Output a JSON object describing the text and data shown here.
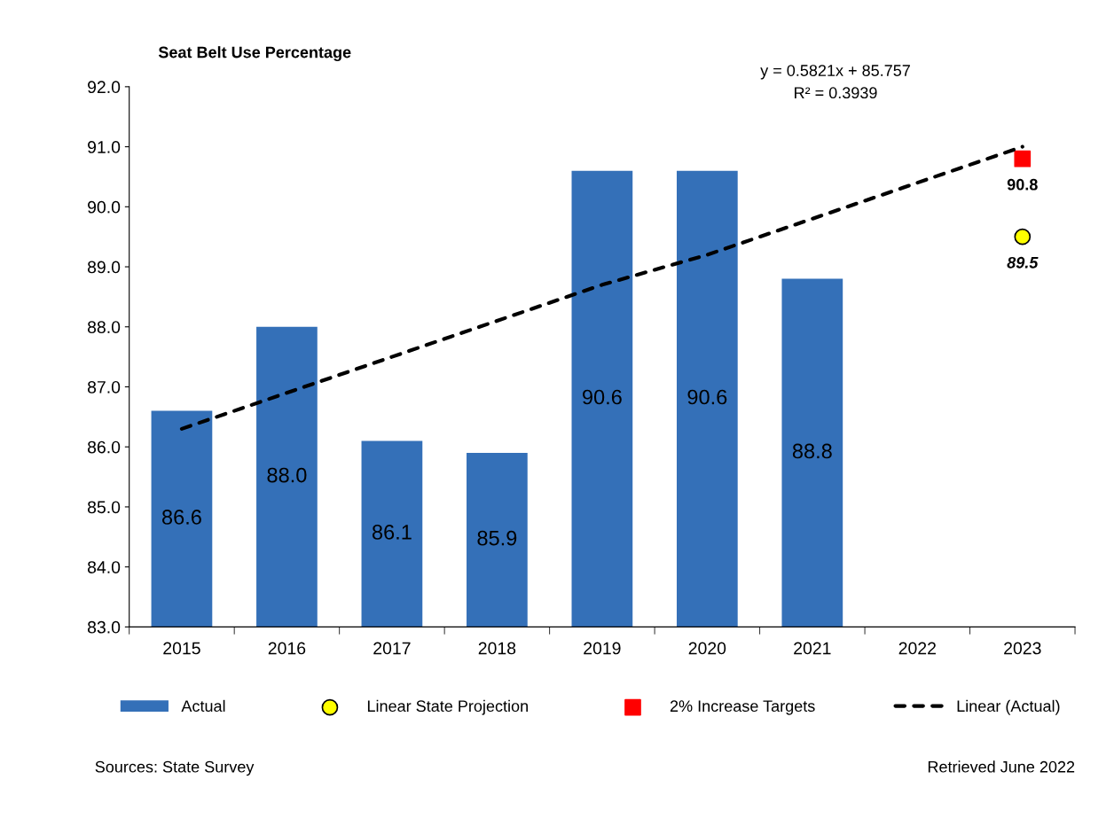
{
  "chart_data": {
    "type": "bar",
    "title": "Seat Belt Use Percentage",
    "categories": [
      "2015",
      "2016",
      "2017",
      "2018",
      "2019",
      "2020",
      "2021",
      "2022",
      "2023"
    ],
    "series": [
      {
        "name": "Actual",
        "color": "#3470b8",
        "values": [
          86.6,
          88.0,
          86.1,
          85.9,
          90.6,
          90.6,
          88.8,
          null,
          null
        ],
        "value_labels": [
          "86.6",
          "88.0",
          "86.1",
          "85.9",
          "90.6",
          "90.6",
          "88.8",
          null,
          null
        ]
      },
      {
        "name": "Linear State Projection",
        "type": "scatter",
        "marker": "circle",
        "color": "#ffff00",
        "values": [
          null,
          null,
          null,
          null,
          null,
          null,
          null,
          null,
          89.5
        ],
        "value_labels": [
          null,
          null,
          null,
          null,
          null,
          null,
          null,
          null,
          "89.5"
        ]
      },
      {
        "name": "2% Increase Targets",
        "type": "scatter",
        "marker": "square",
        "color": "#ff0000",
        "values": [
          null,
          null,
          null,
          null,
          null,
          null,
          null,
          null,
          90.8
        ],
        "value_labels": [
          null,
          null,
          null,
          null,
          null,
          null,
          null,
          null,
          "90.8"
        ]
      },
      {
        "name": "Linear (Actual)",
        "type": "line",
        "line_style": "dashed",
        "color": "#000000",
        "values": [
          86.3,
          86.9,
          87.5,
          88.1,
          88.7,
          89.2,
          89.8,
          90.4,
          91.0
        ]
      }
    ],
    "ylim": [
      83,
      92
    ],
    "yticks": [
      {
        "value": 83,
        "label": "83.0"
      },
      {
        "value": 84,
        "label": "84.0"
      },
      {
        "value": 85,
        "label": "85.0"
      },
      {
        "value": 86,
        "label": "86.0"
      },
      {
        "value": 87,
        "label": "87.0"
      },
      {
        "value": 88,
        "label": "88.0"
      },
      {
        "value": 89,
        "label": "89.0"
      },
      {
        "value": 90,
        "label": "90.0"
      },
      {
        "value": 91,
        "label": "91.0"
      },
      {
        "value": 92,
        "label": "92.0"
      }
    ],
    "grid": false,
    "legend": "bottom",
    "annotations": [
      "y = 0.5821x + 85.757",
      "R² = 0.3939",
      "Sources: State Survey",
      "Retrieved June 2022"
    ]
  }
}
